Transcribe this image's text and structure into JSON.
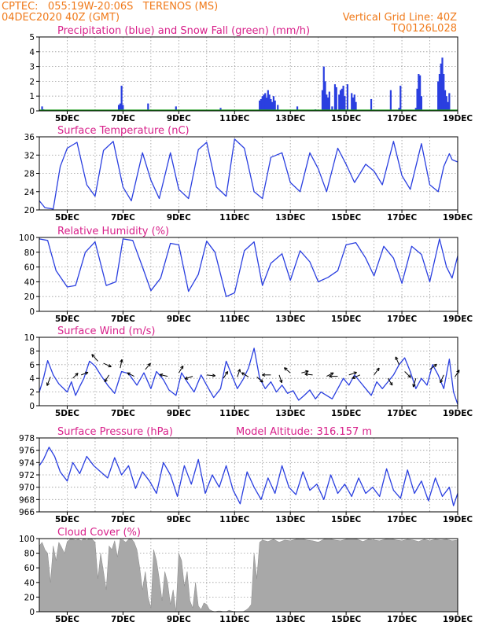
{
  "header": {
    "line1_left": "CPTEC:   055:19W-20:06S   TERENOS (MS)",
    "line2_left": "04DEC2020 40Z (GMT)",
    "line2_right": "Vertical Grid Line: 40Z",
    "line3_right": "TQ0126L028"
  },
  "colors": {
    "header": "#f07a1a",
    "title": "#d8208a",
    "series": "#2a3fe0",
    "snow": "#1a9a1a",
    "cloud": "#a8a8a8",
    "grid": "#9a9a9a"
  },
  "x_tick_labels": [
    "5DEC",
    "7DEC",
    "9DEC",
    "11DEC",
    "13DEC",
    "15DEC",
    "17DEC",
    "19DEC"
  ],
  "chart_data": [
    {
      "type": "bar",
      "title": "Precipitation (blue) and Snow Fall (green) (mm/h)",
      "ylim": [
        0,
        5
      ],
      "yticks": [
        0,
        1,
        2,
        3,
        4,
        5
      ],
      "x_days": [
        4.1,
        4.15,
        4.25,
        6.85,
        6.9,
        6.95,
        7.0,
        7.9,
        8.9,
        10.5,
        11.9,
        11.95,
        12.0,
        12.05,
        12.1,
        12.15,
        12.2,
        12.25,
        12.3,
        12.35,
        12.4,
        12.45,
        12.55,
        13.25,
        13.9,
        14.15,
        14.2,
        14.25,
        14.3,
        14.35,
        14.4,
        14.5,
        14.6,
        14.65,
        14.75,
        14.8,
        14.85,
        14.9,
        14.95,
        15.05,
        15.2,
        15.25,
        15.3,
        15.35,
        15.9,
        16.6,
        16.9,
        16.95,
        17.5,
        17.55,
        17.6,
        17.65,
        17.7,
        18.3,
        18.35,
        18.4,
        18.45,
        18.5,
        18.55,
        18.6,
        18.65,
        18.7
      ],
      "values": [
        0.3,
        0.1,
        0.05,
        0.4,
        0.5,
        1.7,
        0.4,
        0.5,
        0.3,
        0.2,
        0.7,
        0.8,
        1.0,
        1.1,
        1.2,
        0.9,
        1.4,
        1.1,
        0.8,
        0.6,
        1.0,
        0.7,
        0.4,
        0.3,
        0.1,
        1.4,
        3.0,
        2.0,
        1.1,
        0.9,
        1.3,
        0.3,
        1.8,
        1.6,
        1.1,
        1.4,
        1.5,
        1.7,
        1.0,
        1.8,
        1.2,
        0.9,
        1.1,
        0.6,
        0.8,
        1.4,
        0.2,
        1.7,
        0.2,
        1.5,
        2.5,
        2.4,
        1.0,
        2.0,
        2.5,
        3.2,
        3.6,
        2.5,
        1.4,
        1.0,
        0.6,
        1.2
      ],
      "snow_values": [
        0
      ]
    },
    {
      "type": "line",
      "title": "Surface Temperature (nC)",
      "ylim": [
        20,
        36
      ],
      "yticks": [
        20,
        24,
        28,
        32,
        36
      ],
      "x_days": [
        4.0,
        4.2,
        4.5,
        4.75,
        5.0,
        5.35,
        5.7,
        6.0,
        6.3,
        6.65,
        7.0,
        7.3,
        7.7,
        8.0,
        8.3,
        8.7,
        9.0,
        9.35,
        9.7,
        10.0,
        10.35,
        10.7,
        11.0,
        11.35,
        11.7,
        12.0,
        12.3,
        12.7,
        13.0,
        13.35,
        13.7,
        14.0,
        14.3,
        14.7,
        15.0,
        15.3,
        15.7,
        16.0,
        16.3,
        16.7,
        17.0,
        17.3,
        17.7,
        18.0,
        18.3,
        18.5,
        18.7,
        18.8,
        19.0
      ],
      "values": [
        22.0,
        20.5,
        20.2,
        29.5,
        33.5,
        34.8,
        25.5,
        23.0,
        33.0,
        35.0,
        25.0,
        22.0,
        32.5,
        26.5,
        22.5,
        32.5,
        24.5,
        22.5,
        33.2,
        34.8,
        25.0,
        23.0,
        35.5,
        33.5,
        24.0,
        22.5,
        31.5,
        32.5,
        26.0,
        24.0,
        32.5,
        29.0,
        24.0,
        33.5,
        30.0,
        26.0,
        30.0,
        28.5,
        25.5,
        35.0,
        27.5,
        24.5,
        34.5,
        25.5,
        24.0,
        29.5,
        32.3,
        31.0,
        30.5
      ]
    },
    {
      "type": "line",
      "title": "Relative Humidity (%)",
      "ylim": [
        0,
        100
      ],
      "yticks": [
        0,
        20,
        40,
        60,
        80,
        100
      ],
      "x_days": [
        4.0,
        4.3,
        4.6,
        5.0,
        5.3,
        5.65,
        6.0,
        6.4,
        6.75,
        7.0,
        7.35,
        7.7,
        8.0,
        8.35,
        8.7,
        9.0,
        9.35,
        9.7,
        10.0,
        10.3,
        10.7,
        11.0,
        11.35,
        11.7,
        12.0,
        12.3,
        12.7,
        13.0,
        13.35,
        13.7,
        14.0,
        14.35,
        14.7,
        15.0,
        15.35,
        15.7,
        16.0,
        16.35,
        16.7,
        17.0,
        17.35,
        17.7,
        18.0,
        18.35,
        18.6,
        18.8,
        19.0
      ],
      "values": [
        98.0,
        96.0,
        55.0,
        33.0,
        35.0,
        80.0,
        94.0,
        35.0,
        40.0,
        98.0,
        96.0,
        60.0,
        28.0,
        45.0,
        92.0,
        90.0,
        27.0,
        50.0,
        95.0,
        80.0,
        20.0,
        25.0,
        82.0,
        94.0,
        35.0,
        65.0,
        78.0,
        42.0,
        82.0,
        67.0,
        40.0,
        46.0,
        55.0,
        90.0,
        93.0,
        72.0,
        48.0,
        88.0,
        72.0,
        38.0,
        88.0,
        77.0,
        40.0,
        98.0,
        60.0,
        45.0,
        75.0
      ]
    },
    {
      "type": "line",
      "title": "Surface Wind (m/s)",
      "ylim": [
        0,
        10
      ],
      "yticks": [
        0,
        2,
        4,
        6,
        8,
        10
      ],
      "x_days": [
        4.0,
        4.15,
        4.3,
        4.5,
        4.7,
        5.0,
        5.15,
        5.3,
        5.45,
        5.6,
        5.8,
        6.0,
        6.2,
        6.45,
        6.7,
        6.95,
        7.2,
        7.5,
        7.75,
        8.0,
        8.2,
        8.45,
        8.65,
        8.9,
        9.1,
        9.3,
        9.55,
        9.8,
        10.0,
        10.25,
        10.5,
        10.7,
        10.9,
        11.1,
        11.3,
        11.5,
        11.7,
        11.9,
        12.1,
        12.3,
        12.5,
        12.7,
        12.9,
        13.1,
        13.3,
        13.5,
        13.7,
        13.9,
        14.1,
        14.3,
        14.5,
        14.7,
        14.9,
        15.1,
        15.3,
        15.5,
        15.7,
        15.9,
        16.1,
        16.3,
        16.5,
        16.7,
        16.9,
        17.1,
        17.3,
        17.5,
        17.7,
        17.9,
        18.1,
        18.3,
        18.5,
        18.7,
        18.85,
        19.0
      ],
      "values": [
        2.0,
        4.0,
        6.6,
        4.5,
        3.2,
        2.0,
        3.5,
        1.5,
        2.8,
        4.0,
        6.5,
        5.8,
        4.5,
        3.0,
        1.8,
        5.0,
        4.7,
        3.0,
        4.8,
        2.5,
        5.0,
        3.8,
        2.3,
        1.5,
        4.8,
        3.5,
        2.0,
        4.5,
        3.0,
        1.2,
        2.5,
        6.5,
        4.5,
        2.5,
        3.8,
        5.5,
        8.4,
        4.0,
        2.5,
        3.5,
        2.0,
        3.0,
        1.8,
        2.2,
        0.8,
        1.5,
        2.3,
        1.0,
        2.0,
        1.5,
        1.0,
        2.5,
        4.0,
        3.0,
        4.5,
        3.5,
        2.5,
        1.5,
        3.5,
        2.5,
        3.5,
        4.5,
        6.0,
        7.0,
        5.0,
        2.5,
        4.0,
        3.0,
        6.0,
        4.5,
        2.5,
        6.8,
        2.0,
        0.2
      ],
      "arrows": [
        {
          "day": 4.4,
          "speed": 4.2,
          "dx": -0.4,
          "dy": -1.0
        },
        {
          "day": 5.2,
          "speed": 4.0,
          "dx": 0.6,
          "dy": 0.6
        },
        {
          "day": 5.5,
          "speed": 4.5,
          "dx": 0.8,
          "dy": 0.3
        },
        {
          "day": 6.1,
          "speed": 6.5,
          "dx": -0.7,
          "dy": 0.8
        },
        {
          "day": 6.3,
          "speed": 6.2,
          "dx": 0.9,
          "dy": -0.4
        },
        {
          "day": 6.5,
          "speed": 4.5,
          "dx": -0.5,
          "dy": -0.8
        },
        {
          "day": 6.9,
          "speed": 5.5,
          "dx": 0.2,
          "dy": 1.0
        },
        {
          "day": 7.4,
          "speed": 4.3,
          "dx": -0.8,
          "dy": 0.4
        },
        {
          "day": 7.8,
          "speed": 5.3,
          "dx": 0.6,
          "dy": 0.7
        },
        {
          "day": 8.6,
          "speed": 4.3,
          "dx": -0.9,
          "dy": 0.2
        },
        {
          "day": 9.0,
          "speed": 4.8,
          "dx": 0.5,
          "dy": 0.8
        },
        {
          "day": 9.5,
          "speed": 4.3,
          "dx": -0.9,
          "dy": -0.3
        },
        {
          "day": 10.0,
          "speed": 4.5,
          "dx": 1.0,
          "dy": -0.1
        },
        {
          "day": 10.6,
          "speed": 4.0,
          "dx": 0.5,
          "dy": 0.8
        },
        {
          "day": 11.1,
          "speed": 4.2,
          "dx": 0.3,
          "dy": 0.9
        },
        {
          "day": 11.5,
          "speed": 4.2,
          "dx": -0.8,
          "dy": 0.5
        },
        {
          "day": 11.8,
          "speed": 4.2,
          "dx": 0.7,
          "dy": -0.6
        },
        {
          "day": 12.3,
          "speed": 4.5,
          "dx": -1.0,
          "dy": 0.0
        },
        {
          "day": 12.6,
          "speed": 4.5,
          "dx": 0.3,
          "dy": -0.9
        },
        {
          "day": 13.0,
          "speed": 4.8,
          "dx": -0.7,
          "dy": 0.6
        },
        {
          "day": 13.4,
          "speed": 4.8,
          "dx": 0.8,
          "dy": 0.2
        },
        {
          "day": 13.8,
          "speed": 4.5,
          "dx": -0.9,
          "dy": 0.1
        },
        {
          "day": 14.3,
          "speed": 4.3,
          "dx": 0.8,
          "dy": 0.4
        },
        {
          "day": 14.7,
          "speed": 4.3,
          "dx": -1.0,
          "dy": 0.0
        },
        {
          "day": 15.1,
          "speed": 4.5,
          "dx": 0.9,
          "dy": 0.3
        },
        {
          "day": 15.5,
          "speed": 4.5,
          "dx": -0.9,
          "dy": -0.4
        },
        {
          "day": 16.0,
          "speed": 4.5,
          "dx": 0.6,
          "dy": 0.8
        },
        {
          "day": 16.5,
          "speed": 4.0,
          "dx": 0.5,
          "dy": -0.8
        },
        {
          "day": 16.9,
          "speed": 6.0,
          "dx": -0.4,
          "dy": 0.9
        },
        {
          "day": 17.1,
          "speed": 5.0,
          "dx": 0.7,
          "dy": -0.7
        },
        {
          "day": 17.5,
          "speed": 4.0,
          "dx": -0.3,
          "dy": -1.0
        },
        {
          "day": 18.0,
          "speed": 5.3,
          "dx": 0.8,
          "dy": 0.6
        },
        {
          "day": 18.5,
          "speed": 4.5,
          "dx": -0.4,
          "dy": -0.9
        },
        {
          "day": 18.9,
          "speed": 4.2,
          "dx": 0.5,
          "dy": 0.8
        }
      ]
    },
    {
      "type": "line",
      "title": "Surface Pressure (hPa)",
      "subtitle": "Model Altitude: 316.157 m",
      "ylim": [
        966,
        978
      ],
      "yticks": [
        966,
        968,
        970,
        972,
        974,
        976,
        978
      ],
      "x_days": [
        4.0,
        4.15,
        4.35,
        4.55,
        4.75,
        5.0,
        5.2,
        5.45,
        5.7,
        5.95,
        6.2,
        6.45,
        6.7,
        6.95,
        7.2,
        7.45,
        7.7,
        7.95,
        8.2,
        8.45,
        8.7,
        8.95,
        9.2,
        9.45,
        9.7,
        9.95,
        10.2,
        10.45,
        10.7,
        10.95,
        11.2,
        11.45,
        11.7,
        11.95,
        12.2,
        12.45,
        12.7,
        12.95,
        13.2,
        13.45,
        13.7,
        13.95,
        14.2,
        14.45,
        14.7,
        14.95,
        15.2,
        15.45,
        15.7,
        15.95,
        16.2,
        16.45,
        16.7,
        16.95,
        17.2,
        17.45,
        17.7,
        17.95,
        18.2,
        18.45,
        18.7,
        18.85,
        19.0
      ],
      "values": [
        973.5,
        974.5,
        976.5,
        975.0,
        972.5,
        971.0,
        974.0,
        972.2,
        975.0,
        973.5,
        972.5,
        971.5,
        974.8,
        972.0,
        973.5,
        969.8,
        972.5,
        971.0,
        969.0,
        974.0,
        972.0,
        968.5,
        973.5,
        970.5,
        974.5,
        969.0,
        972.0,
        970.0,
        973.5,
        969.5,
        967.3,
        972.5,
        970.0,
        968.0,
        971.5,
        969.0,
        973.5,
        970.0,
        968.8,
        972.5,
        969.5,
        970.5,
        968.0,
        972.0,
        969.0,
        970.5,
        968.5,
        971.5,
        969.0,
        970.0,
        968.5,
        973.0,
        969.5,
        968.2,
        972.8,
        969.0,
        971.0,
        967.8,
        971.5,
        968.5,
        970.0,
        967.0,
        969.0
      ]
    },
    {
      "type": "area",
      "title": "Cloud Cover (%)",
      "ylim": [
        0,
        100
      ],
      "yticks": [
        0,
        20,
        40,
        60,
        80,
        100
      ],
      "x_days": [
        4.0,
        4.1,
        4.2,
        4.3,
        4.4,
        4.5,
        4.6,
        4.7,
        4.8,
        4.9,
        5.0,
        5.1,
        5.2,
        5.3,
        5.4,
        5.5,
        5.6,
        5.7,
        5.8,
        5.9,
        6.0,
        6.1,
        6.2,
        6.3,
        6.4,
        6.5,
        6.6,
        6.7,
        6.8,
        6.9,
        7.0,
        7.1,
        7.2,
        7.3,
        7.4,
        7.5,
        7.6,
        7.7,
        7.8,
        7.9,
        8.0,
        8.1,
        8.2,
        8.3,
        8.4,
        8.5,
        8.6,
        8.7,
        8.8,
        8.9,
        9.0,
        9.1,
        9.2,
        9.3,
        9.4,
        9.5,
        9.6,
        9.7,
        9.8,
        9.9,
        10.0,
        10.1,
        10.2,
        10.3,
        10.4,
        10.5,
        10.6,
        10.7,
        10.8,
        10.9,
        11.0,
        11.1,
        11.2,
        11.3,
        11.4,
        11.5,
        11.6,
        11.7,
        11.8,
        11.9,
        12.0,
        12.2,
        12.4,
        12.6,
        12.8,
        13.0,
        13.2,
        13.4,
        13.6,
        13.8,
        14.0,
        14.2,
        14.4,
        14.6,
        14.8,
        15.0,
        15.2,
        15.4,
        15.6,
        15.8,
        16.0,
        16.2,
        16.4,
        16.6,
        16.8,
        17.0,
        17.2,
        17.4,
        17.6,
        17.8,
        18.0,
        18.2,
        18.4,
        18.6,
        18.8,
        19.0
      ],
      "values": [
        90,
        95,
        85,
        80,
        40,
        90,
        70,
        95,
        88,
        80,
        96,
        99,
        99,
        98,
        99,
        97,
        100,
        98,
        100,
        99,
        95,
        45,
        80,
        55,
        30,
        90,
        85,
        97,
        75,
        99,
        98,
        95,
        99,
        100,
        95,
        85,
        60,
        30,
        55,
        20,
        5,
        85,
        70,
        45,
        15,
        55,
        40,
        10,
        30,
        0,
        80,
        70,
        35,
        55,
        15,
        5,
        40,
        8,
        3,
        12,
        10,
        3,
        1,
        0,
        1,
        1,
        0,
        0,
        2,
        1,
        0,
        0,
        0,
        0,
        2,
        5,
        10,
        80,
        45,
        95,
        98,
        96,
        99,
        95,
        98,
        97,
        99,
        100,
        98,
        97,
        95,
        99,
        100,
        98,
        97,
        99,
        100,
        99,
        96,
        99,
        98,
        97,
        99,
        100,
        98,
        97,
        99,
        98,
        96,
        99,
        97,
        99,
        98,
        99,
        97,
        98
      ]
    }
  ]
}
